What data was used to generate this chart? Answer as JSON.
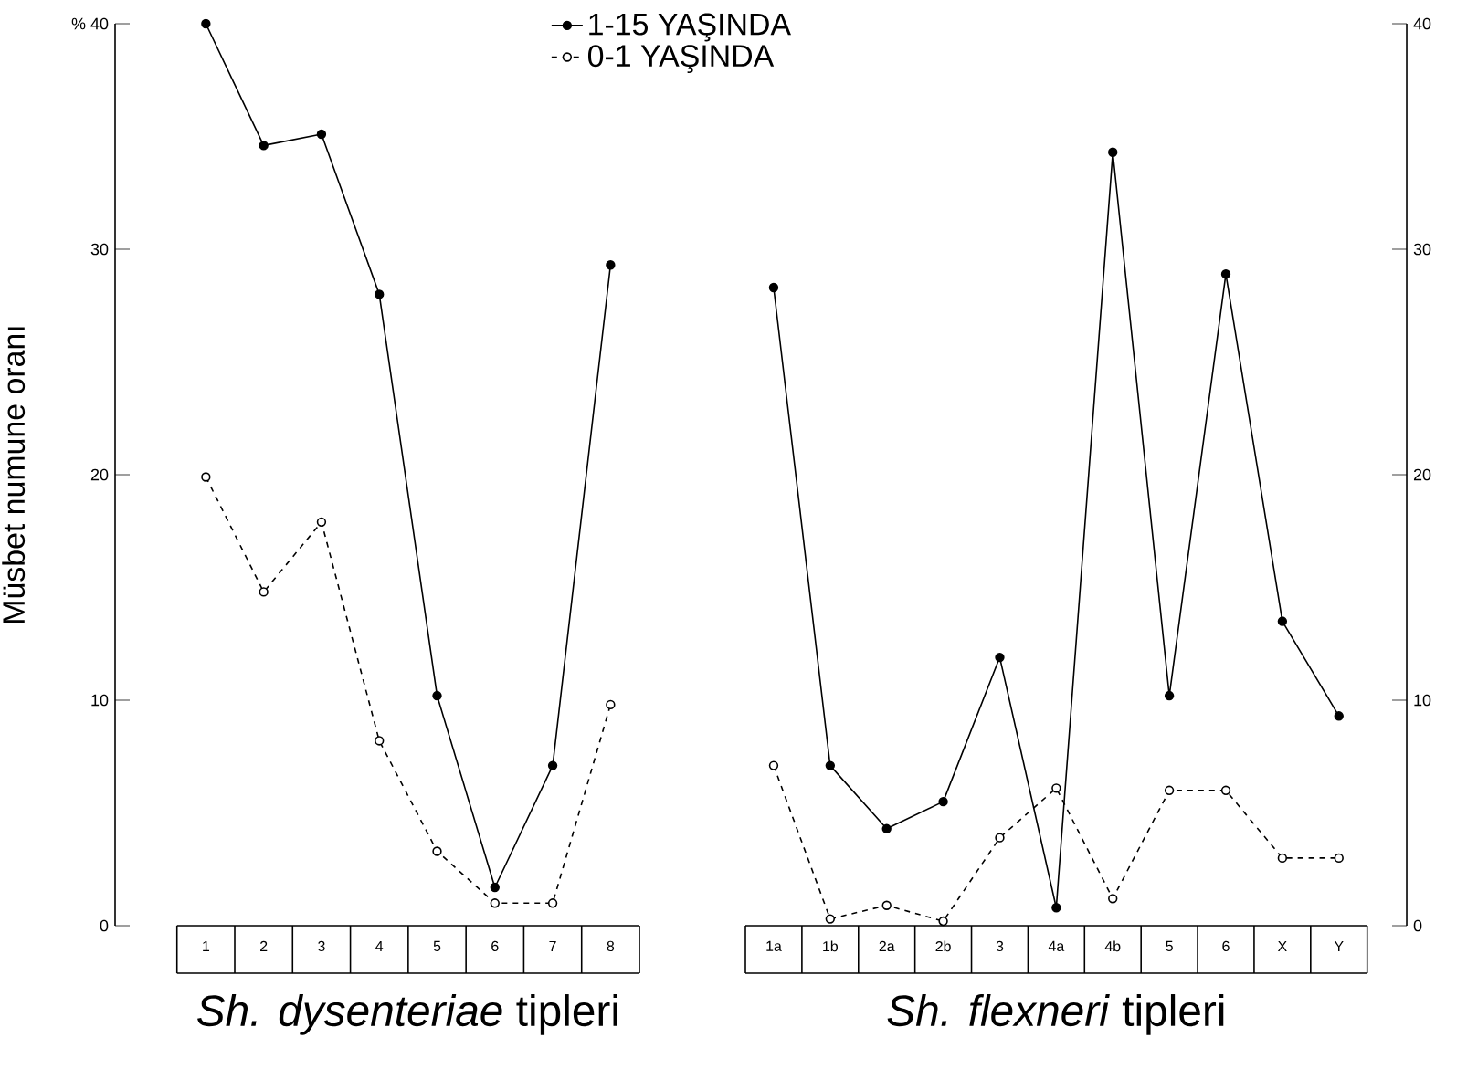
{
  "chart_data": [
    {
      "type": "line",
      "ylabel": "Müsbet numune oranı",
      "xlabel": "*Sh. dysenteriae* tipleri",
      "categories": [
        "1",
        "2",
        "3",
        "4",
        "5",
        "6",
        "7",
        "8"
      ],
      "series": [
        {
          "name": "1-15 YAŞINDA",
          "color": "#000000",
          "line_style": "solid",
          "values": [
            40,
            34.6,
            35.1,
            28.0,
            10.2,
            1.7,
            7.1,
            29.3
          ]
        },
        {
          "name": "0-1 YAŞINDA",
          "color": "#000000",
          "line_style": "dashed",
          "values": [
            19.9,
            14.8,
            17.9,
            8.2,
            3.3,
            1.0,
            1.0,
            9.8
          ]
        }
      ],
      "ylim": [
        0,
        40
      ],
      "yticks": [
        0,
        10,
        20,
        30,
        {
          "value": 40,
          "label": "% 40"
        }
      ],
      "marker": "circle",
      "legend": "top right",
      "grid": false
    },
    {
      "type": "line",
      "xlabel": "*Sh. flexneri* tipleri",
      "categories": [
        "1a",
        "1b",
        "2a",
        "2b",
        "3",
        "4a",
        "4b",
        "5",
        "6",
        "X",
        "Y"
      ],
      "series": [
        {
          "color": "#000000",
          "line_style": "solid",
          "values": [
            28.3,
            7.1,
            4.3,
            5.5,
            11.9,
            0.8,
            34.3,
            10.2,
            28.9,
            13.5,
            9.3
          ]
        },
        {
          "color": "#000000",
          "line_style": "dashed",
          "values": [
            7.1,
            0.3,
            0.9,
            0.2,
            3.9,
            6.1,
            1.2,
            6.0,
            6.0,
            3.0,
            3.0
          ]
        }
      ],
      "ylim": [
        0,
        40
      ],
      "yticks": [
        0,
        10,
        20,
        30,
        40
      ],
      "marker": "circle",
      "grid": false
    }
  ]
}
